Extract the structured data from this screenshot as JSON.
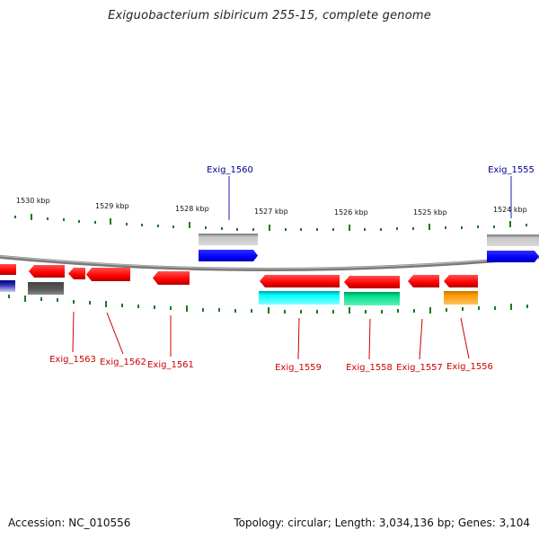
{
  "title": "Exiguobacterium sibiricum 255-15, complete genome",
  "footer": {
    "accession_label": "Accession:",
    "accession": "NC_010556",
    "topology_label": "Topology:",
    "topology": "circular",
    "length_label": "Length:",
    "length": "3,034,136 bp",
    "genes_label": "Genes:",
    "genes": "3,104"
  },
  "colors": {
    "backbone": "#8a8a8a",
    "tick": "#1a7a1a",
    "forward_label": "#00008b",
    "reverse_label": "#cc0000",
    "cds_forward": "#0000ff",
    "cds_reverse": "#ff0000",
    "gray_feature": "#c0c0c0",
    "dark_gray_feature": "#5a5a5a",
    "cyan_feature": "#00ffff",
    "green_feature": "#00dd88",
    "orange_feature": "#ff9900"
  },
  "scale": {
    "unit": "kbp",
    "labels": [
      "1530 kbp",
      "1529 kbp",
      "1528 kbp",
      "1527 kbp",
      "1526 kbp",
      "1525 kbp",
      "1524 kbp"
    ]
  },
  "genes_shown": {
    "forward": [
      "Exig_1560",
      "Exig_1555"
    ],
    "reverse": [
      "Exig_1563",
      "Exig_1562",
      "Exig_1561",
      "Exig_1559",
      "Exig_1558",
      "Exig_1557",
      "Exig_1556"
    ]
  }
}
